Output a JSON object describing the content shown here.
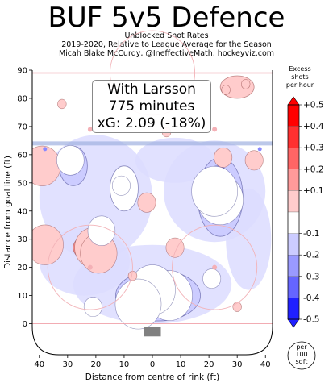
{
  "header": {
    "title": "BUF 5v5 Defence",
    "subtitle_1": "Unblocked Shot Rates",
    "subtitle_2": "2019-2020, Relative to League Average for the Season",
    "subtitle_3": "Micah Blake McCurdy, @IneffectiveMath, hockeyviz.com"
  },
  "infobox": {
    "line_1": "With Larsson",
    "line_2": "775 minutes",
    "line_3": "xG: 2.09 (-18%)"
  },
  "chart_data": {
    "type": "heatmap",
    "title": "BUF 5v5 Defence",
    "xlabel": "Distance from centre of rink (ft)",
    "ylabel": "Distance from goal line (ft)",
    "xlim": [
      -42.5,
      42.5
    ],
    "ylim": [
      -11,
      90
    ],
    "x_ticks": [
      "40",
      "30",
      "20",
      "10",
      "0",
      "10",
      "20",
      "30",
      "40"
    ],
    "y_ticks": [
      "0",
      "10",
      "20",
      "30",
      "40",
      "50",
      "60",
      "70",
      "80",
      "90"
    ],
    "grid": false,
    "colorbar": {
      "title_lines": [
        "Excess",
        "shots",
        "per hour"
      ],
      "levels": [
        "+0.5",
        "+0.4",
        "+0.3",
        "+0.2",
        "+0.1",
        "-0.1",
        "-0.2",
        "-0.3",
        "-0.4",
        "-0.5"
      ],
      "colors": [
        "#ff0000",
        "#ff3030",
        "#ff6565",
        "#ff9a9a",
        "#ffcccc",
        "#ffffff",
        "#ccccff",
        "#9a9aff",
        "#6565ff",
        "#2020ff"
      ],
      "unit_lines": [
        "per",
        "100",
        "sqft"
      ]
    },
    "hotspots": [
      {
        "x": 24,
        "y": 44,
        "value": -0.5
      },
      {
        "x": 22,
        "y": 47,
        "value": -0.5
      },
      {
        "x": 6,
        "y": 10,
        "value": -0.5
      },
      {
        "x": 0,
        "y": 12,
        "value": -0.5
      },
      {
        "x": -5,
        "y": 7,
        "value": -0.5
      },
      {
        "x": -21,
        "y": 27,
        "value": 0.4
      },
      {
        "x": -19,
        "y": 25,
        "value": 0.4
      },
      {
        "x": -38,
        "y": 28,
        "value": 0.4
      },
      {
        "x": -39,
        "y": 56,
        "value": 0.4
      },
      {
        "x": -2,
        "y": 43,
        "value": 0.2
      },
      {
        "x": 36,
        "y": 58,
        "value": 0.2
      },
      {
        "x": 26,
        "y": 83,
        "value": 0.1
      },
      {
        "x": 33,
        "y": 85,
        "value": 0.1
      },
      {
        "x": -32,
        "y": 78,
        "value": 0.1
      },
      {
        "x": -7,
        "y": 17,
        "value": 0.1
      },
      {
        "x": -29,
        "y": 58,
        "value": -0.3
      },
      {
        "x": -18,
        "y": 33,
        "value": -0.3
      },
      {
        "x": -11,
        "y": 49,
        "value": -0.2
      },
      {
        "x": 21,
        "y": 16,
        "value": -0.2
      },
      {
        "x": 8,
        "y": 27,
        "value": 0.2
      },
      {
        "x": 25,
        "y": 59,
        "value": 0.2
      },
      {
        "x": 5,
        "y": 68,
        "value": 0.1
      },
      {
        "x": -21,
        "y": 6,
        "value": -0.2
      },
      {
        "x": 30,
        "y": 6,
        "value": 0.1
      }
    ],
    "regions": [
      {
        "x": 24,
        "y": 45,
        "rx": 8,
        "ry": 14,
        "value": -0.2
      },
      {
        "x": 23,
        "y": 46,
        "rx": 6,
        "ry": 10,
        "value": -0.3
      },
      {
        "x": 23,
        "y": 46,
        "rx": 4,
        "ry": 7,
        "value": -0.4
      },
      {
        "x": 2,
        "y": 10,
        "rx": 15,
        "ry": 9,
        "value": -0.2
      },
      {
        "x": 1,
        "y": 11,
        "rx": 11,
        "ry": 7,
        "value": -0.3
      },
      {
        "x": 1,
        "y": 11,
        "rx": 8,
        "ry": 5,
        "value": -0.4
      },
      {
        "x": -21,
        "y": 27,
        "rx": 7,
        "ry": 5,
        "value": 0.2
      },
      {
        "x": -38,
        "y": 28,
        "rx": 4,
        "ry": 5,
        "value": 0.2
      },
      {
        "x": -39,
        "y": 56,
        "rx": 3,
        "ry": 3,
        "value": 0.2
      },
      {
        "x": -28,
        "y": 56,
        "rx": 5,
        "ry": 7,
        "value": -0.2
      },
      {
        "x": -10,
        "y": 48,
        "rx": 5,
        "ry": 8,
        "value": -0.1
      },
      {
        "x": 30,
        "y": 84,
        "rx": 6,
        "ry": 4,
        "value": 0.1
      }
    ]
  }
}
